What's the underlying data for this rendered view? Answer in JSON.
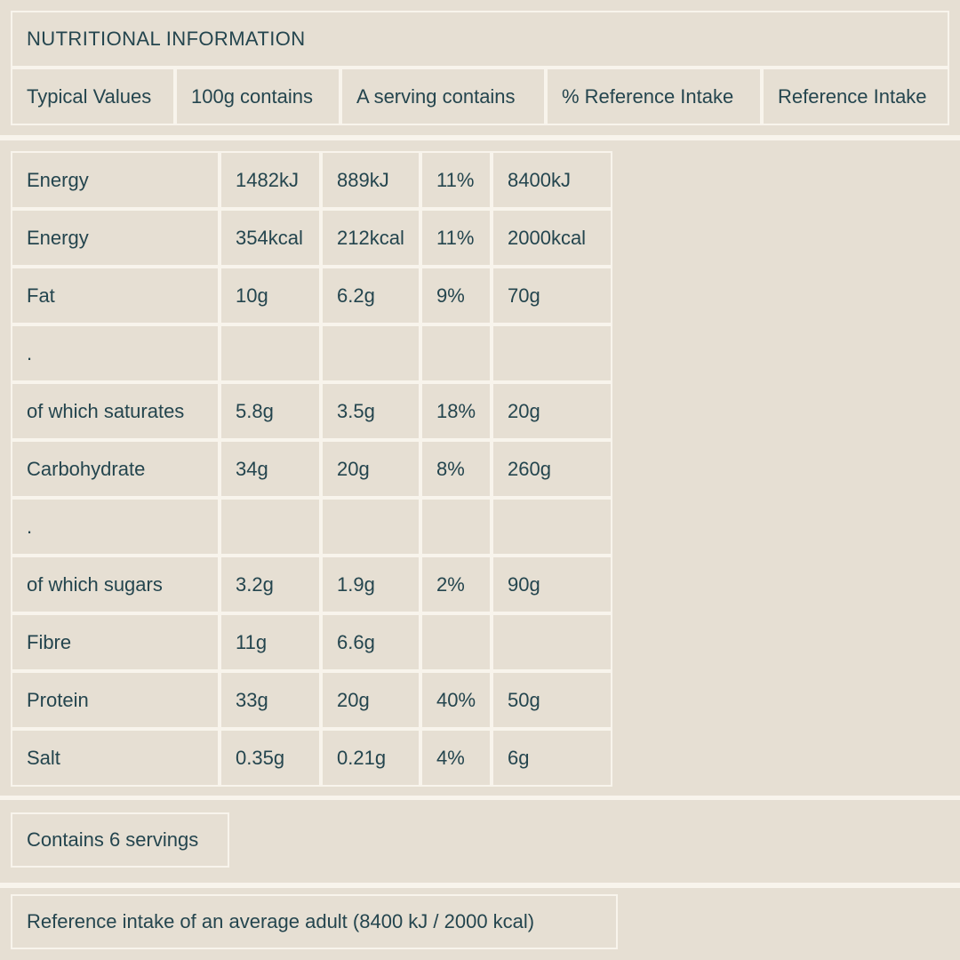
{
  "colors": {
    "background": "#e6dfd3",
    "divider": "#f8f4ec",
    "text": "#24454e"
  },
  "label": {
    "title": "NUTRITIONAL INFORMATION",
    "columns": [
      "Typical Values",
      "100g contains",
      "A serving contains",
      "% Reference Intake",
      "Reference Intake"
    ],
    "rows": [
      [
        "Energy",
        "1482kJ",
        "889kJ",
        "11%",
        "8400kJ"
      ],
      [
        "Energy",
        "354kcal",
        "212kcal",
        "11%",
        "2000kcal"
      ],
      [
        "Fat",
        "10g",
        "6.2g",
        "9%",
        "70g"
      ],
      [
        ".",
        "",
        "",
        "",
        ""
      ],
      [
        "of which saturates",
        "5.8g",
        "3.5g",
        "18%",
        "20g"
      ],
      [
        "Carbohydrate",
        "34g",
        "20g",
        "8%",
        "260g"
      ],
      [
        ".",
        "",
        "",
        "",
        ""
      ],
      [
        "of which sugars",
        "3.2g",
        "1.9g",
        "2%",
        "90g"
      ],
      [
        "Fibre",
        "11g",
        "6.6g",
        "",
        ""
      ],
      [
        "Protein",
        "33g",
        "20g",
        "40%",
        "50g"
      ],
      [
        "Salt",
        "0.35g",
        "0.21g",
        "4%",
        "6g"
      ]
    ],
    "servings_note": "Contains 6 servings",
    "reference_note": "Reference intake of an average adult (8400 kJ / 2000 kcal)"
  }
}
